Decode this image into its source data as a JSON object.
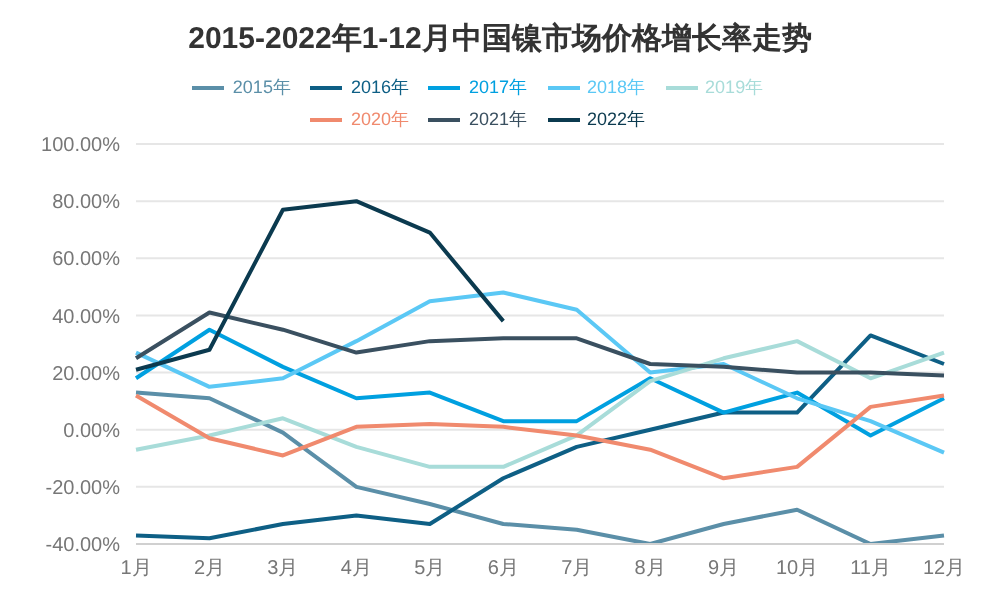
{
  "chart_data": {
    "type": "line",
    "title": "2015-2022年1-12月中国镍市场价格增长率走势",
    "categories": [
      "1月",
      "2月",
      "3月",
      "4月",
      "5月",
      "6月",
      "7月",
      "8月",
      "9月",
      "10月",
      "11月",
      "12月"
    ],
    "series": [
      {
        "name": "2015年",
        "color": "#5b8fa8",
        "values": [
          13,
          11,
          -1,
          -20,
          -26,
          -33,
          -35,
          -40,
          -33,
          -28,
          -40,
          -37
        ]
      },
      {
        "name": "2016年",
        "color": "#0e5f85",
        "values": [
          -37,
          -38,
          -33,
          -30,
          -33,
          -17,
          -6,
          0,
          6,
          6,
          33,
          23
        ]
      },
      {
        "name": "2017年",
        "color": "#00a0e0",
        "values": [
          18,
          35,
          22,
          11,
          13,
          3,
          3,
          18,
          6,
          13,
          -2,
          11
        ]
      },
      {
        "name": "2018年",
        "color": "#5bc8f5",
        "values": [
          27,
          15,
          18,
          31,
          45,
          48,
          42,
          20,
          23,
          11,
          3,
          -8
        ]
      },
      {
        "name": "2019年",
        "color": "#a8dcd9",
        "values": [
          -7,
          -2,
          4,
          -6,
          -13,
          -13,
          -2,
          17,
          25,
          31,
          18,
          27
        ]
      },
      {
        "name": "2020年",
        "color": "#f08a6e",
        "values": [
          12,
          -3,
          -9,
          1,
          2,
          1,
          -2,
          -7,
          -17,
          -13,
          8,
          12
        ]
      },
      {
        "name": "2021年",
        "color": "#3a5060",
        "values": [
          25,
          41,
          35,
          27,
          31,
          32,
          32,
          23,
          22,
          20,
          20,
          19
        ]
      },
      {
        "name": "2022年",
        "color": "#0b3a4f",
        "values": [
          21,
          28,
          77,
          80,
          69,
          38,
          null,
          null,
          null,
          null,
          null,
          null
        ]
      }
    ],
    "ylim": [
      -40,
      100
    ],
    "yticks": [
      {
        "value": -40,
        "label": "-40.00%"
      },
      {
        "value": -20,
        "label": "-20.00%"
      },
      {
        "value": 0,
        "label": "0.00%"
      },
      {
        "value": 20,
        "label": "20.00%"
      },
      {
        "value": 40,
        "label": "40.00%"
      },
      {
        "value": 60,
        "label": "60.00%"
      },
      {
        "value": 80,
        "label": "80.00%"
      },
      {
        "value": 100,
        "label": "100.00%"
      }
    ],
    "grid": "y",
    "legend": "top",
    "marker": "none",
    "line_style": "solid"
  }
}
